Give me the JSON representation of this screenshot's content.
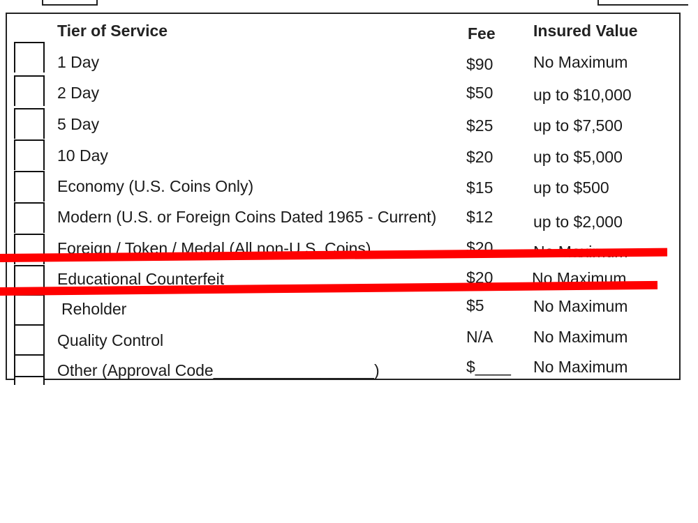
{
  "table": {
    "headers": {
      "tier": "Tier of Service",
      "fee": "Fee",
      "insured": "Insured Value"
    },
    "rows": [
      {
        "service": "1 Day",
        "fee": "$90",
        "insured": "No Maximum"
      },
      {
        "service": "2 Day",
        "fee": "$50",
        "insured": "up to $10,000"
      },
      {
        "service": "5 Day",
        "fee": "$25",
        "insured": "up to $7,500"
      },
      {
        "service": "10 Day",
        "fee": "$20",
        "insured": "up to $5,000"
      },
      {
        "service": "Economy (U.S. Coins Only)",
        "fee": "$15",
        "insured": "up to $500"
      },
      {
        "service": "Modern (U.S. or Foreign Coins Dated 1965 - Current)",
        "fee": "$12",
        "insured": "up to $2,000"
      },
      {
        "service": "Foreign / Token / Medal (All non-U.S. Coins)",
        "fee": "$20",
        "insured": "No Maximum"
      },
      {
        "service": "Educational Counterfeit",
        "fee": "$20",
        "insured": "No Maximum"
      },
      {
        "service": "Reholder",
        "fee": "$5",
        "insured": "No Maximum"
      },
      {
        "service": "Quality Control",
        "fee": "N/A",
        "insured": "No Maximum"
      },
      {
        "service": "Other (Approval Code__________________)",
        "fee": "$____",
        "insured": "No Maximum"
      }
    ]
  },
  "colors": {
    "strike": "#ff0000",
    "border": "#222222"
  }
}
